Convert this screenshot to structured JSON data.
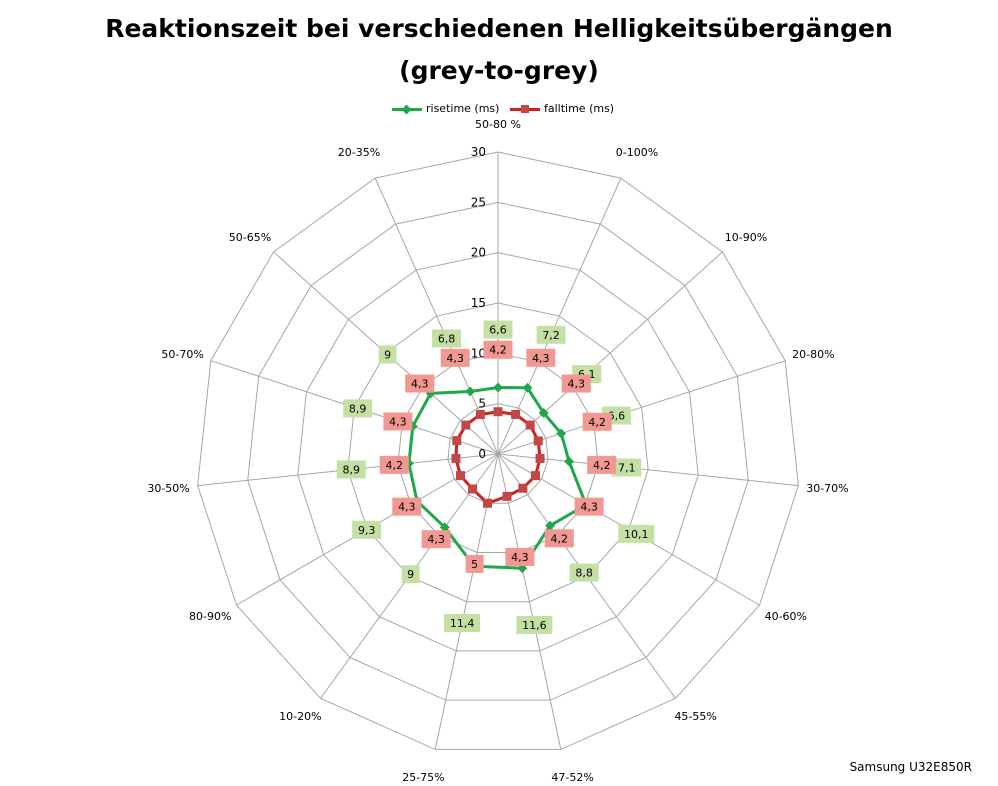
{
  "footer": "Samsung U32E850R",
  "chart_data": {
    "type": "radar",
    "title": "Reaktionszeit bei verschiedenen Helligkeitsübergängen",
    "subtitle": "(grey-to-grey)",
    "categories": [
      "50-80 %",
      "0-100%",
      "10-90%",
      "20-80%",
      "30-70%",
      "40-60%",
      "45-55%",
      "47-52%",
      "25-75%",
      "10-20%",
      "80-90%",
      "30-50%",
      "50-70%",
      "50-65%",
      "20-35%"
    ],
    "rlim": [
      0,
      30
    ],
    "ticks": [
      0,
      5,
      10,
      15,
      20,
      25,
      30
    ],
    "grid": true,
    "legend_position": "top",
    "series": [
      {
        "name": "risetime (ms)",
        "color": "#1fa84a",
        "label_bg": "#c5e0a5",
        "values": [
          6.6,
          7.2,
          6.1,
          6.6,
          7.1,
          10.1,
          8.8,
          11.6,
          11.4,
          9,
          9.3,
          8.9,
          8.9,
          9,
          6.8
        ],
        "labels": [
          "6,6",
          "7,2",
          "6,1",
          "6,6",
          "7,1",
          "10,1",
          "8,8",
          "11,6",
          "11,4",
          "9",
          "9,3",
          "8,9",
          "8,9",
          "9",
          "6,8"
        ]
      },
      {
        "name": "falltime (ms)",
        "color": "#cc2222",
        "label_bg": "#f19892",
        "values": [
          4.2,
          4.3,
          4.3,
          4.2,
          4.2,
          4.3,
          4.2,
          4.3,
          5,
          4.3,
          4.3,
          4.2,
          4.3,
          4.3,
          4.3
        ],
        "labels": [
          "4,2",
          "4,3",
          "4,3",
          "4,2",
          "4,2",
          "4,3",
          "4,2",
          "4,3",
          "5",
          "4,3",
          "4,3",
          "4,2",
          "4,3",
          "4,3",
          "4,3"
        ]
      }
    ]
  }
}
